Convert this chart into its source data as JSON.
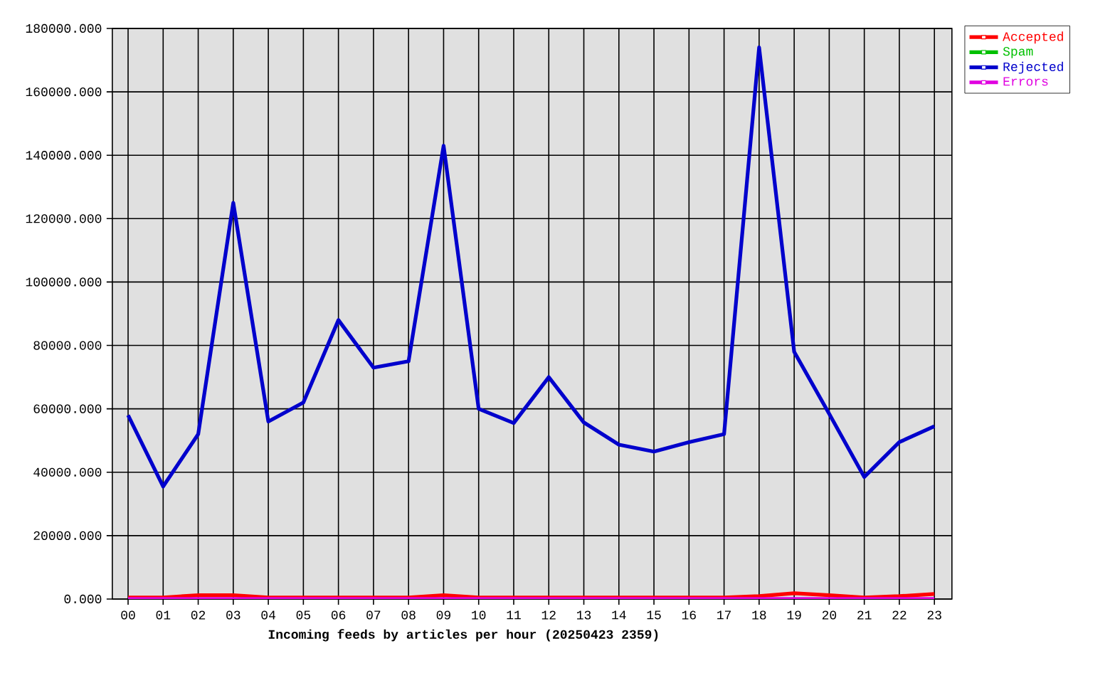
{
  "chart_data": {
    "type": "line",
    "xlabel": "Incoming feeds by articles per hour (20250423 2359)",
    "categories": [
      "00",
      "01",
      "02",
      "03",
      "04",
      "05",
      "06",
      "07",
      "08",
      "09",
      "10",
      "11",
      "12",
      "13",
      "14",
      "15",
      "16",
      "17",
      "18",
      "19",
      "20",
      "21",
      "22",
      "23"
    ],
    "series": [
      {
        "name": "Accepted",
        "color": "#ff0000",
        "values": [
          500,
          500,
          1200,
          1200,
          500,
          500,
          500,
          500,
          500,
          1200,
          500,
          500,
          500,
          500,
          500,
          500,
          500,
          500,
          900,
          1800,
          1200,
          500,
          900,
          1600
        ]
      },
      {
        "name": "Spam",
        "color": "#00c000",
        "values": [
          null,
          null,
          null,
          null,
          null,
          null,
          null,
          null,
          null,
          null,
          null,
          null,
          null,
          null,
          null,
          null,
          null,
          null,
          null,
          null,
          null,
          null,
          null,
          null
        ]
      },
      {
        "name": "Rejected",
        "color": "#0000cc",
        "values": [
          58000,
          35500,
          52000,
          125000,
          56000,
          62000,
          88000,
          73000,
          75000,
          143000,
          60000,
          55500,
          70000,
          55700,
          48700,
          46500,
          49500,
          52000,
          174000,
          78000,
          58400,
          38500,
          49500,
          54500
        ]
      },
      {
        "name": "Errors",
        "color": "#e000e0",
        "values": [
          0,
          0,
          0,
          0,
          0,
          0,
          0,
          0,
          0,
          0,
          0,
          0,
          0,
          0,
          0,
          0,
          0,
          0,
          0,
          0,
          0,
          0,
          0,
          0
        ]
      }
    ],
    "ylim": [
      0,
      180000
    ],
    "yticks": [
      {
        "value": 0,
        "label": "0.000"
      },
      {
        "value": 20000,
        "label": "20000.000"
      },
      {
        "value": 40000,
        "label": "40000.000"
      },
      {
        "value": 60000,
        "label": "60000.000"
      },
      {
        "value": 80000,
        "label": "80000.000"
      },
      {
        "value": 100000,
        "label": "100000.000"
      },
      {
        "value": 120000,
        "label": "120000.000"
      },
      {
        "value": 140000,
        "label": "140000.000"
      },
      {
        "value": 160000,
        "label": "160000.000"
      },
      {
        "value": 180000,
        "label": "180000.000"
      }
    ],
    "grid": true,
    "legend": "right",
    "marker": "none",
    "line_style": "solid"
  }
}
